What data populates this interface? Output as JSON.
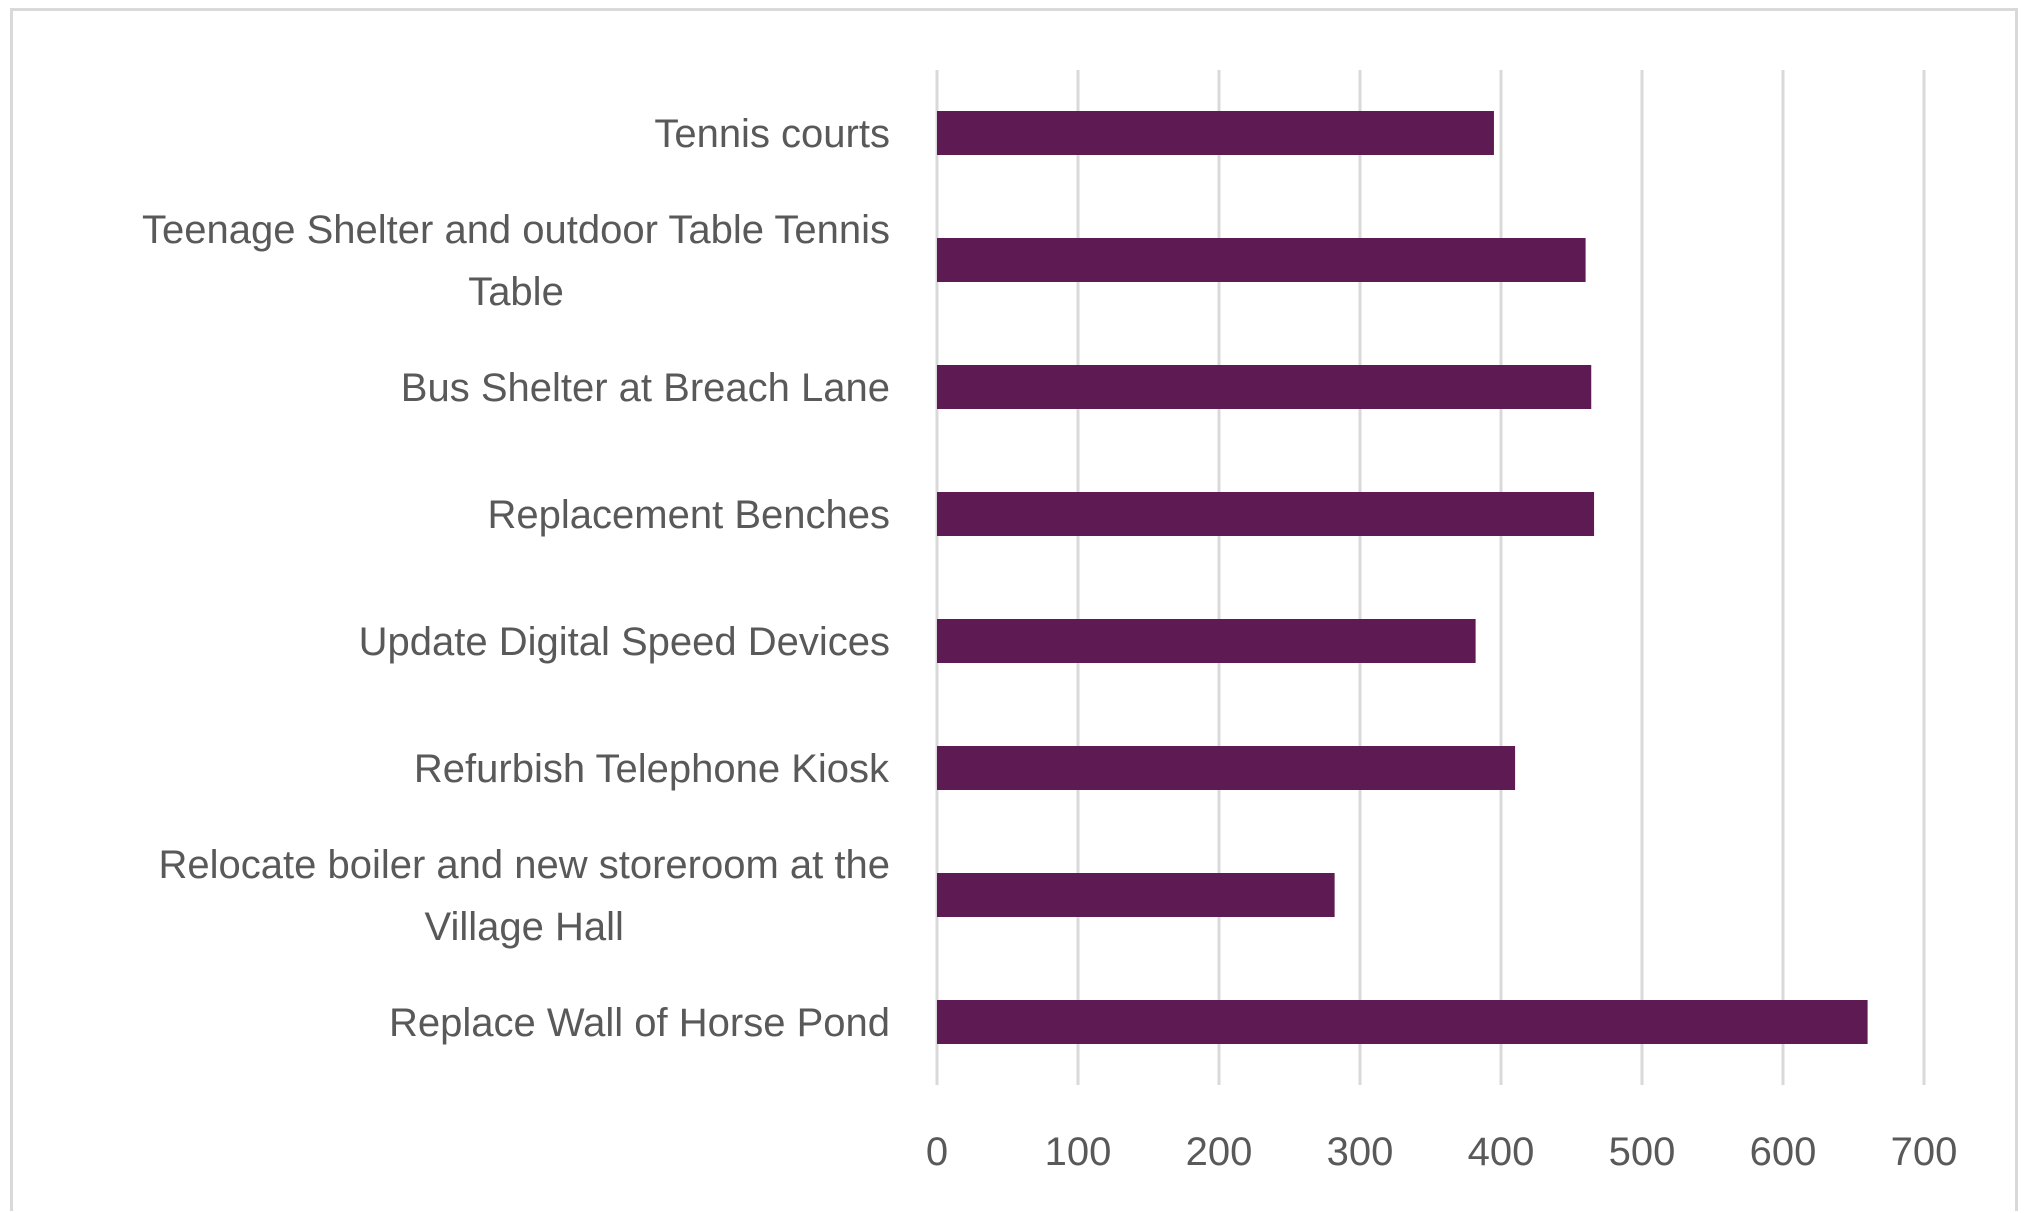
{
  "chart_data": {
    "type": "bar",
    "orientation": "horizontal",
    "title": "",
    "xlabel": "",
    "ylabel": "",
    "categories": [
      "Tennis courts",
      "Teenage Shelter and outdoor Table Tennis Table",
      "Bus Shelter at Breach Lane",
      "Replacement Benches",
      "Update Digital Speed Devices",
      "Refurbish Telephone Kiosk",
      "Relocate boiler and new storeroom at the Village Hall",
      "Replace Wall of Horse Pond"
    ],
    "category_lines": [
      [
        "Tennis courts"
      ],
      [
        "Teenage Shelter and outdoor Table Tennis",
        "Table"
      ],
      [
        "Bus Shelter at Breach Lane"
      ],
      [
        "Replacement Benches"
      ],
      [
        "Update Digital Speed Devices"
      ],
      [
        "Refurbish Telephone Kiosk"
      ],
      [
        "Relocate boiler and new storeroom at the",
        "Village Hall"
      ],
      [
        "Replace Wall of Horse Pond"
      ]
    ],
    "values": [
      395,
      460,
      464,
      466,
      382,
      410,
      282,
      660
    ],
    "xlim": [
      0,
      700
    ],
    "xticks": [
      0,
      100,
      200,
      300,
      400,
      500,
      600,
      700
    ],
    "grid": true,
    "legend": "none",
    "bar_color": "#5e1a53"
  }
}
